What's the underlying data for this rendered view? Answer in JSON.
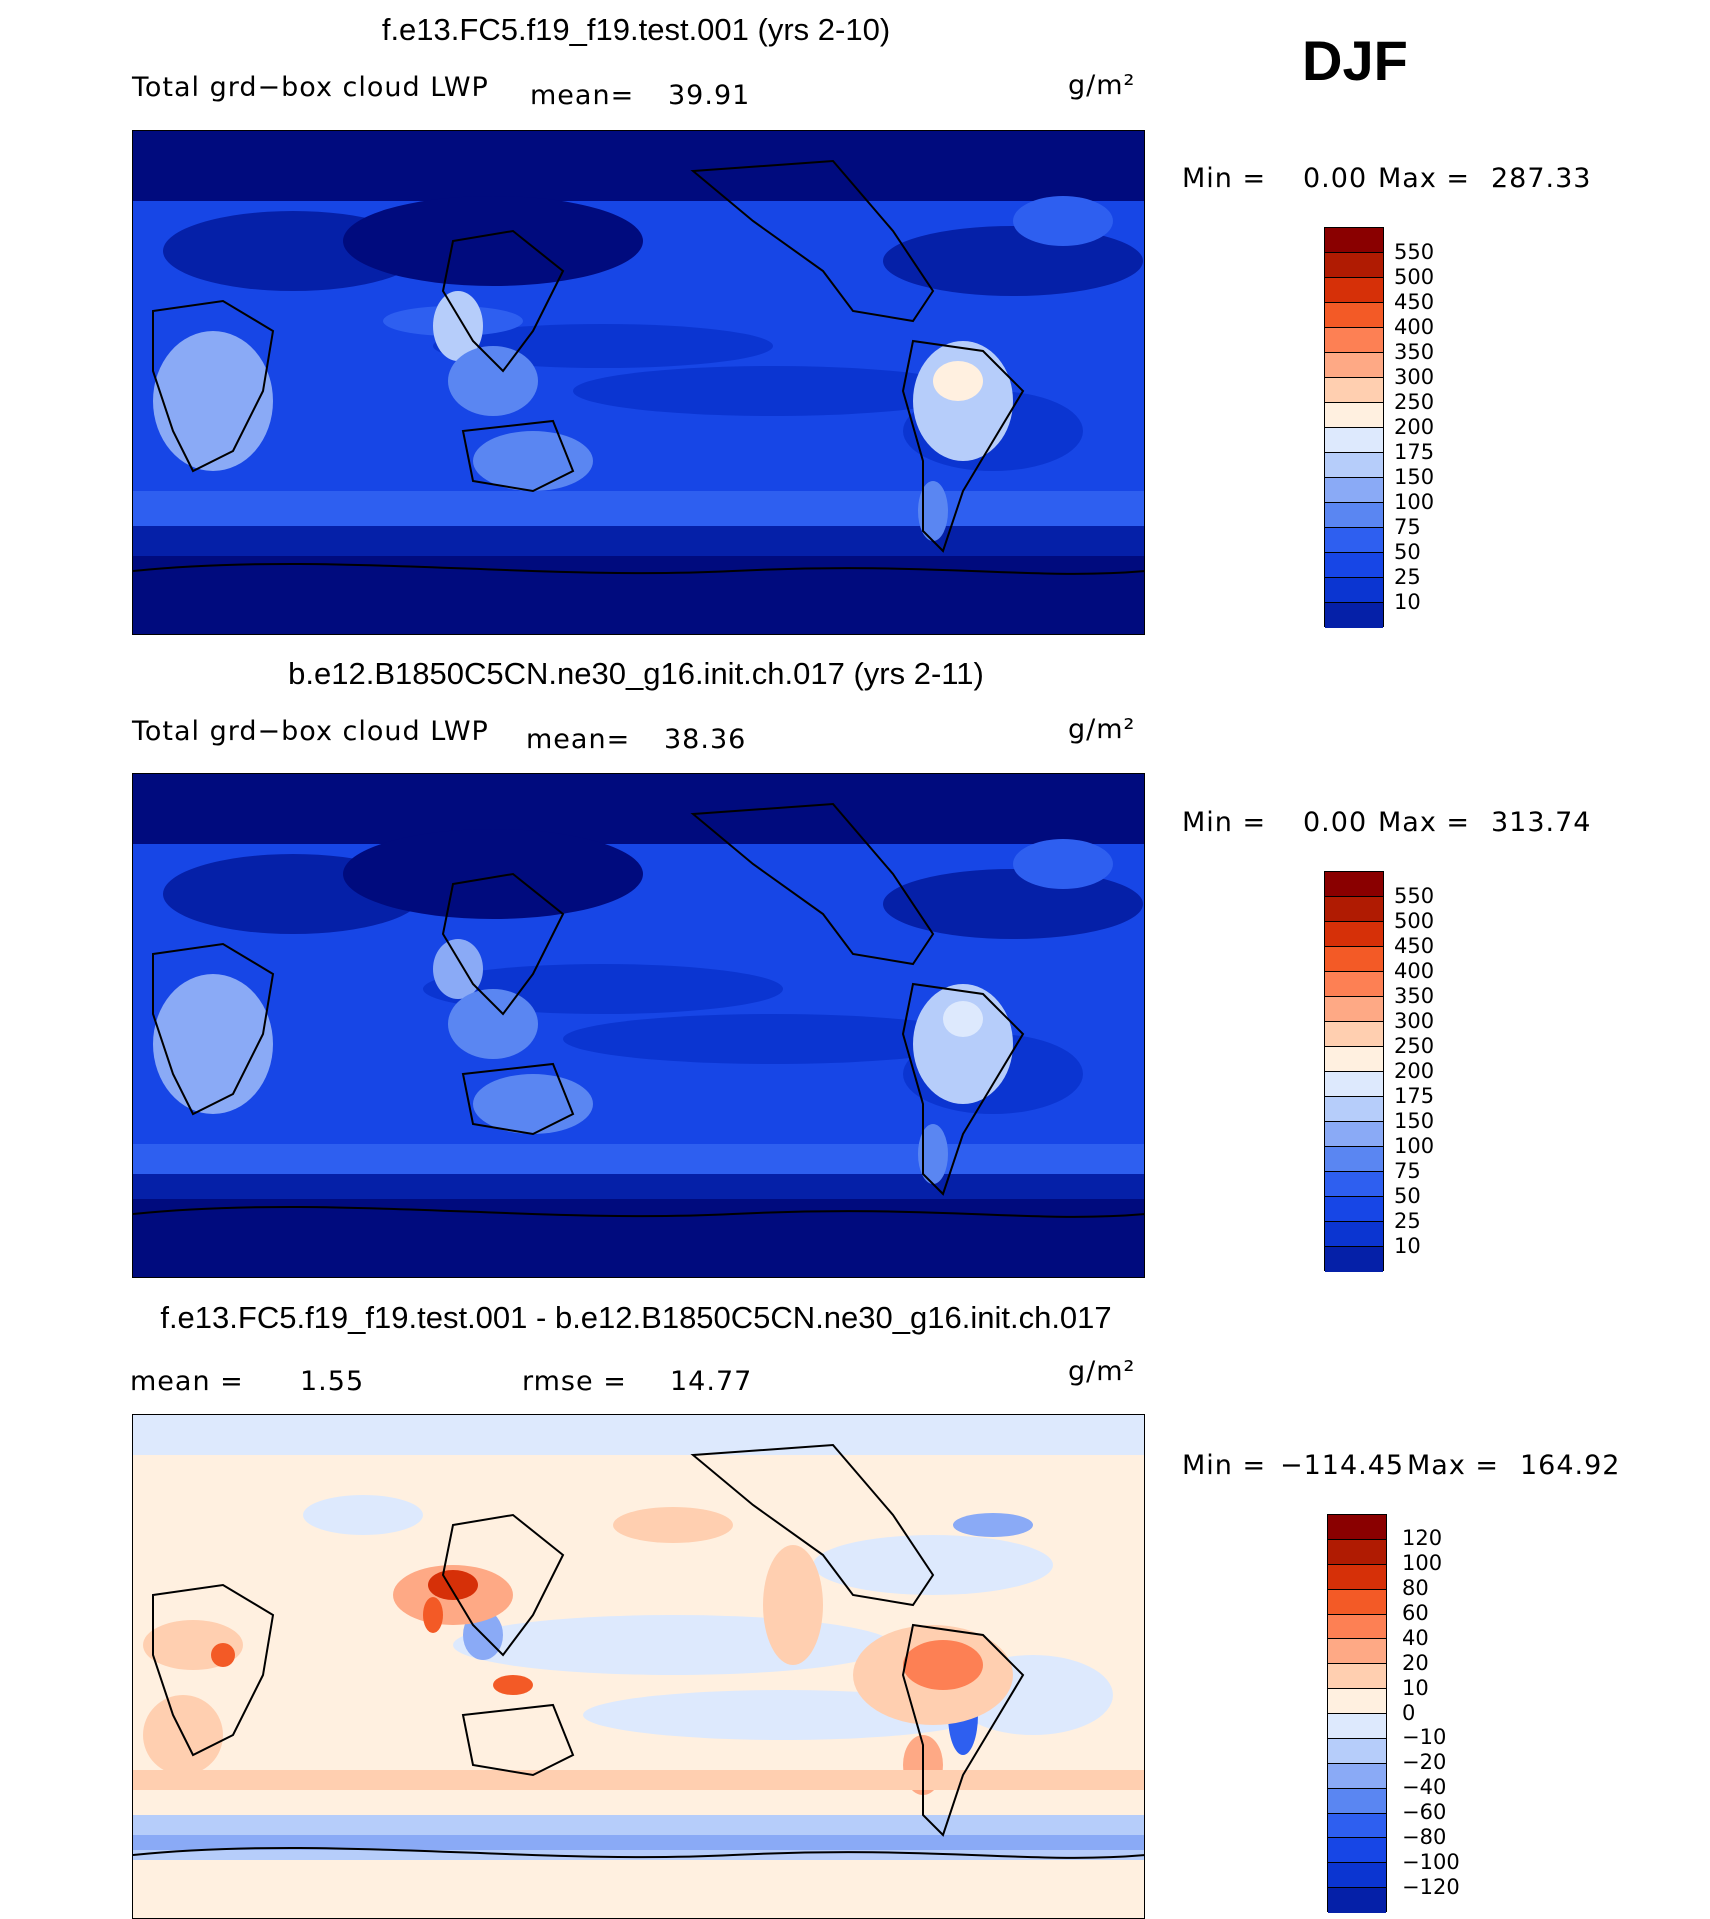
{
  "season": "DJF",
  "colors": {
    "abs_scale": [
      "#000b7e",
      "#0520a8",
      "#0b35d1",
      "#1746e6",
      "#2e5ff0",
      "#5a86f2",
      "#8aaaf6",
      "#b6cdfa",
      "#dde9fd",
      "#fff0e0",
      "#ffcfb0",
      "#fea985",
      "#fd8054",
      "#f35a26",
      "#d63008",
      "#b01b02",
      "#8a0000"
    ],
    "diff_scale": [
      "#000b7e",
      "#0520a8",
      "#0b35d1",
      "#1746e6",
      "#2e5ff0",
      "#5a86f2",
      "#8aaaf6",
      "#b6cdfa",
      "#dde9fd",
      "#fff0e0",
      "#ffcfb0",
      "#fea985",
      "#fd8054",
      "#f35a26",
      "#d63008",
      "#b01b02",
      "#8a0000"
    ]
  },
  "panels": [
    {
      "title": "f.e13.FC5.f19_f19.test.001 (yrs 2-10)",
      "variable": "Total grd−box cloud LWP",
      "mean_label": "mean=",
      "mean_value": "39.91",
      "units": "g/m²",
      "min_label": "Min =",
      "min_value": "0.00",
      "max_label": "Max =",
      "max_value": "287.33",
      "colorbar_labels": [
        "550",
        "500",
        "450",
        "400",
        "350",
        "300",
        "250",
        "200",
        "175",
        "150",
        "100",
        "75",
        "50",
        "25",
        "10"
      ],
      "fill_level": "mid"
    },
    {
      "title": "b.e12.B1850C5CN.ne30_g16.init.ch.017 (yrs 2-11)",
      "variable": "Total grd−box cloud LWP",
      "mean_label": "mean=",
      "mean_value": "38.36",
      "units": "g/m²",
      "min_label": "Min =",
      "min_value": "0.00",
      "max_label": "Max =",
      "max_value": "313.74",
      "colorbar_labels": [
        "550",
        "500",
        "450",
        "400",
        "350",
        "300",
        "250",
        "200",
        "175",
        "150",
        "100",
        "75",
        "50",
        "25",
        "10"
      ],
      "fill_level": "mid"
    },
    {
      "title": "f.e13.FC5.f19_f19.test.001 - b.e12.B1850C5CN.ne30_g16.init.ch.017",
      "mean_label": "mean =",
      "mean_value": "1.55",
      "rmse_label": "rmse =",
      "rmse_value": "14.77",
      "units": "g/m²",
      "min_label": "Min =",
      "min_value": "−114.45",
      "max_label": "Max =",
      "max_value": "164.92",
      "colorbar_labels": [
        "120",
        "100",
        "80",
        "60",
        "40",
        "20",
        "10",
        "0",
        "−10",
        "−20",
        "−40",
        "−60",
        "−80",
        "−100",
        "−120"
      ]
    }
  ]
}
